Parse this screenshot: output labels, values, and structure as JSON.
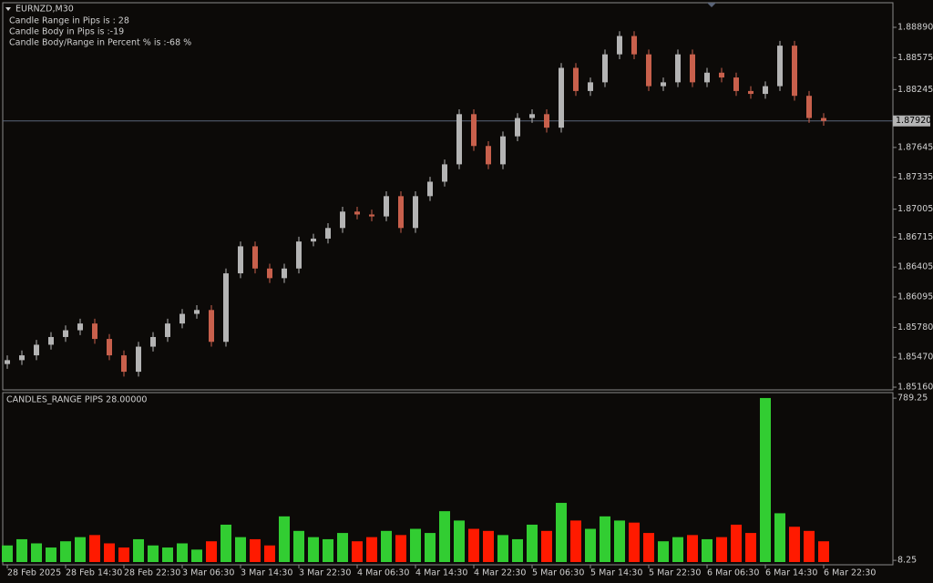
{
  "chart_data": [
    {
      "type": "candlestick",
      "title": "EURNZD,M30",
      "annotations": [
        "Candle Range in Pips is : 28",
        "Candle Body in Pips is :-19",
        "Candle Body/Range in Percent % is :-68 %"
      ],
      "up_color": "#b4b4b4",
      "down_color": "#c8604c",
      "open": [
        1.854,
        1.8544,
        1.8549,
        1.856,
        1.8568,
        1.8575,
        1.8582,
        1.8566,
        1.8549,
        1.8532,
        1.8558,
        1.8568,
        1.8582,
        1.8592,
        1.8596,
        1.8563,
        1.8634,
        1.8662,
        1.8639,
        1.8629,
        1.8639,
        1.8667,
        1.867,
        1.8681,
        1.8698,
        1.8695,
        1.8693,
        1.8714,
        1.8681,
        1.8714,
        1.8729,
        1.8747,
        1.8799,
        1.8766,
        1.8747,
        1.8776,
        1.8795,
        1.8799,
        1.8785,
        1.8847,
        1.8823,
        1.8832,
        1.8861,
        1.888,
        1.8861,
        1.8828,
        1.8832,
        1.8861,
        1.8832,
        1.8842,
        1.8837,
        1.8823,
        1.882,
        1.8828,
        1.887,
        1.8818,
        1.8795
      ],
      "high": [
        1.8549,
        1.8554,
        1.8565,
        1.8573,
        1.858,
        1.8587,
        1.8587,
        1.8571,
        1.8554,
        1.8563,
        1.8573,
        1.8587,
        1.8597,
        1.8601,
        1.8601,
        1.8639,
        1.8667,
        1.8667,
        1.8644,
        1.8644,
        1.8672,
        1.8675,
        1.8686,
        1.8703,
        1.8703,
        1.87,
        1.8719,
        1.8719,
        1.8719,
        1.8734,
        1.8752,
        1.8804,
        1.8804,
        1.8771,
        1.8781,
        1.88,
        1.8804,
        1.8804,
        1.8852,
        1.8852,
        1.8837,
        1.8866,
        1.8885,
        1.8885,
        1.8866,
        1.8837,
        1.8866,
        1.8866,
        1.8847,
        1.8847,
        1.8842,
        1.8828,
        1.8833,
        1.8875,
        1.8875,
        1.8823,
        1.88
      ],
      "low": [
        1.8535,
        1.8539,
        1.8544,
        1.8555,
        1.8563,
        1.857,
        1.8561,
        1.8544,
        1.8527,
        1.8527,
        1.8553,
        1.8563,
        1.8577,
        1.8587,
        1.8558,
        1.8558,
        1.8629,
        1.8634,
        1.8624,
        1.8624,
        1.8634,
        1.8662,
        1.8665,
        1.8676,
        1.869,
        1.8688,
        1.8688,
        1.8676,
        1.8676,
        1.8709,
        1.8724,
        1.8742,
        1.8761,
        1.8742,
        1.8742,
        1.8771,
        1.879,
        1.878,
        1.878,
        1.8818,
        1.8818,
        1.8827,
        1.8856,
        1.8856,
        1.8823,
        1.8823,
        1.8827,
        1.8827,
        1.8827,
        1.8832,
        1.8818,
        1.8815,
        1.8815,
        1.8823,
        1.8813,
        1.879,
        1.8787
      ],
      "close": [
        1.8544,
        1.8549,
        1.856,
        1.8568,
        1.8575,
        1.8582,
        1.8566,
        1.8549,
        1.8532,
        1.8558,
        1.8568,
        1.8582,
        1.8592,
        1.8596,
        1.8563,
        1.8634,
        1.8662,
        1.8639,
        1.8629,
        1.8639,
        1.8667,
        1.867,
        1.8681,
        1.8698,
        1.8695,
        1.8693,
        1.8714,
        1.8681,
        1.8714,
        1.8729,
        1.8747,
        1.8799,
        1.8766,
        1.8747,
        1.8776,
        1.8795,
        1.8799,
        1.8785,
        1.8847,
        1.8823,
        1.8832,
        1.8861,
        1.888,
        1.8861,
        1.8828,
        1.8832,
        1.8861,
        1.8832,
        1.8842,
        1.8837,
        1.8823,
        1.882,
        1.8828,
        1.887,
        1.8818,
        1.8795,
        1.8792
      ],
      "current_price": {
        "value": 1.8792,
        "label": "1.87920"
      },
      "ylim": [
        1.85132,
        1.89145
      ],
      "yticks": [
        {
          "value": 1.8889,
          "label": "1.88890"
        },
        {
          "value": 1.88575,
          "label": "1.88575"
        },
        {
          "value": 1.88245,
          "label": "1.88245"
        },
        {
          "value": 1.87645,
          "label": "1.87645"
        },
        {
          "value": 1.87335,
          "label": "1.87335"
        },
        {
          "value": 1.87005,
          "label": "1.87005"
        },
        {
          "value": 1.86715,
          "label": "1.86715"
        },
        {
          "value": 1.86405,
          "label": "1.86405"
        },
        {
          "value": 1.86095,
          "label": "1.86095"
        },
        {
          "value": 1.8578,
          "label": "1.85780"
        },
        {
          "value": 1.8547,
          "label": "1.85470"
        },
        {
          "value": 1.8516,
          "label": "1.85160"
        }
      ],
      "xticks": [
        {
          "value": 0,
          "label": "28 Feb 2025"
        },
        {
          "value": 4,
          "label": "28 Feb 14:30"
        },
        {
          "value": 8,
          "label": "28 Feb 22:30"
        },
        {
          "value": 12,
          "label": "3 Mar 06:30"
        },
        {
          "value": 16,
          "label": "3 Mar 14:30"
        },
        {
          "value": 20,
          "label": "3 Mar 22:30"
        },
        {
          "value": 24,
          "label": "4 Mar 06:30"
        },
        {
          "value": 28,
          "label": "4 Mar 14:30"
        },
        {
          "value": 32,
          "label": "4 Mar 22:30"
        },
        {
          "value": 36,
          "label": "5 Mar 06:30"
        },
        {
          "value": 40,
          "label": "5 Mar 14:30"
        },
        {
          "value": 44,
          "label": "5 Mar 22:30"
        },
        {
          "value": 48,
          "label": "6 Mar 06:30"
        },
        {
          "value": 52,
          "label": "6 Mar 14:30"
        },
        {
          "value": 56,
          "label": "6 Mar 22:30"
        }
      ]
    },
    {
      "type": "bar",
      "title": "CANDLES_RANGE PIPS 28.00000",
      "up_color": "#32cd32",
      "down_color": "#ff1a00",
      "values": [
        80,
        110,
        90,
        70,
        100,
        120,
        130,
        90,
        70,
        110,
        80,
        70,
        90,
        60,
        100,
        180,
        120,
        110,
        80,
        220,
        150,
        120,
        110,
        140,
        100,
        120,
        150,
        130,
        160,
        140,
        245,
        200,
        160,
        150,
        130,
        110,
        180,
        150,
        285,
        200,
        160,
        220,
        200,
        190,
        140,
        100,
        120,
        130,
        110,
        120,
        180,
        140,
        790,
        235,
        170,
        150,
        100
      ],
      "ylim": [
        0,
        816
      ],
      "yticks": [
        789.25,
        8.25
      ]
    }
  ]
}
